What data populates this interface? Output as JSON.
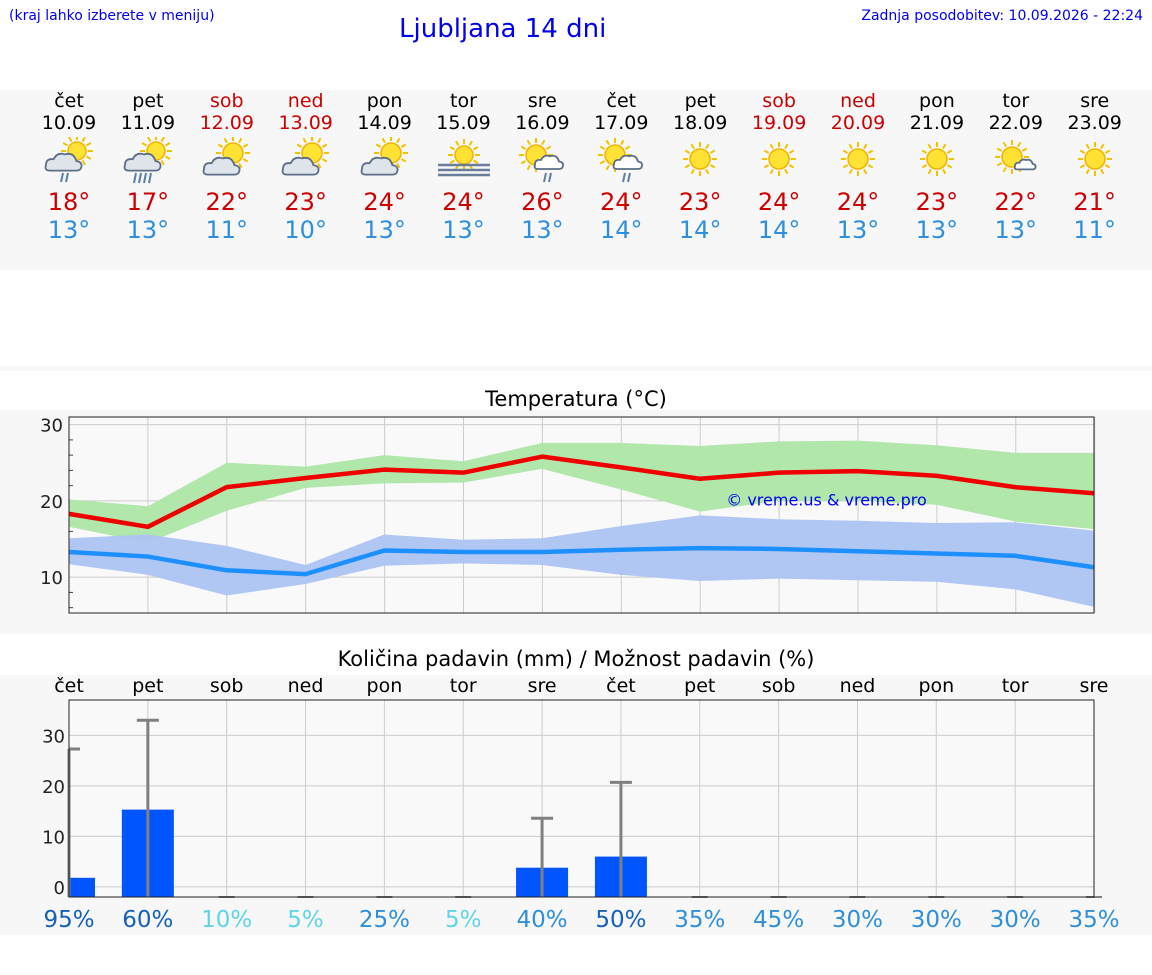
{
  "header": {
    "hint": "(kraj lahko izberete v meniju)",
    "title": "Ljubljana 14 dni",
    "updated": "Zadnja posodobitev: 10.09.2026 - 22:24"
  },
  "colors": {
    "link": "#0000ee",
    "weekend": "#cc0000",
    "max_line": "#ee0000",
    "max_band": "#aee6a8",
    "min_line": "#1e8fff",
    "min_band": "#adc4f2",
    "precip_bar": "#0055ff",
    "error_bar": "#808080"
  },
  "days": [
    {
      "name": "čet",
      "date": "10.09",
      "weekend": false,
      "icon": "cloud-rain-sun-icon",
      "max": "18°",
      "min": "13°"
    },
    {
      "name": "pet",
      "date": "11.09",
      "weekend": false,
      "icon": "cloud-heavy-rain-sun-icon",
      "max": "17°",
      "min": "13°"
    },
    {
      "name": "sob",
      "date": "12.09",
      "weekend": true,
      "icon": "partly-cloudy-icon",
      "max": "22°",
      "min": "11°"
    },
    {
      "name": "ned",
      "date": "13.09",
      "weekend": true,
      "icon": "partly-cloudy-icon",
      "max": "23°",
      "min": "10°"
    },
    {
      "name": "pon",
      "date": "14.09",
      "weekend": false,
      "icon": "partly-cloudy-icon",
      "max": "24°",
      "min": "13°"
    },
    {
      "name": "tor",
      "date": "15.09",
      "weekend": false,
      "icon": "sun-fog-icon",
      "max": "24°",
      "min": "13°"
    },
    {
      "name": "sre",
      "date": "16.09",
      "weekend": false,
      "icon": "sun-shower-icon",
      "max": "26°",
      "min": "13°"
    },
    {
      "name": "čet",
      "date": "17.09",
      "weekend": false,
      "icon": "sun-shower-icon",
      "max": "24°",
      "min": "14°"
    },
    {
      "name": "pet",
      "date": "18.09",
      "weekend": false,
      "icon": "sun-icon",
      "max": "23°",
      "min": "14°"
    },
    {
      "name": "sob",
      "date": "19.09",
      "weekend": true,
      "icon": "sun-icon",
      "max": "24°",
      "min": "14°"
    },
    {
      "name": "ned",
      "date": "20.09",
      "weekend": true,
      "icon": "sun-icon",
      "max": "24°",
      "min": "13°"
    },
    {
      "name": "pon",
      "date": "21.09",
      "weekend": false,
      "icon": "sun-icon",
      "max": "23°",
      "min": "13°"
    },
    {
      "name": "tor",
      "date": "22.09",
      "weekend": false,
      "icon": "sun-small-cloud-icon",
      "max": "22°",
      "min": "13°"
    },
    {
      "name": "sre",
      "date": "23.09",
      "weekend": false,
      "icon": "sun-icon",
      "max": "21°",
      "min": "11°"
    }
  ],
  "chart_data": [
    {
      "type": "line",
      "title": "Temperatura (°C)",
      "watermark": "© vreme.us & vreme.pro",
      "x": [
        "10.09",
        "11.09",
        "12.09",
        "13.09",
        "14.09",
        "15.09",
        "16.09",
        "17.09",
        "18.09",
        "19.09",
        "20.09",
        "21.09",
        "22.09",
        "23.09"
      ],
      "ylim": [
        5.3,
        31
      ],
      "yticks": [
        10,
        20,
        30
      ],
      "grid": true,
      "series": [
        {
          "values": [
            18.3,
            16.6,
            21.8,
            23.0,
            24.1,
            23.7,
            25.8,
            24.4,
            22.9,
            23.7,
            23.9,
            23.3,
            21.8,
            21.0
          ],
          "band_high": [
            20.2,
            19.3,
            25.0,
            24.5,
            26.0,
            25.2,
            27.6,
            27.6,
            27.2,
            27.8,
            27.9,
            27.3,
            26.3,
            26.3
          ],
          "band_low": [
            16.6,
            14.5,
            18.7,
            21.7,
            22.3,
            22.4,
            24.2,
            21.5,
            18.6,
            20.0,
            20.0,
            19.5,
            17.3,
            16.3
          ]
        },
        {
          "values": [
            13.3,
            12.7,
            10.9,
            10.4,
            13.5,
            13.3,
            13.3,
            13.6,
            13.8,
            13.7,
            13.4,
            13.1,
            12.8,
            11.3
          ],
          "band_high": [
            15.1,
            15.6,
            14.1,
            11.6,
            15.6,
            14.9,
            15.1,
            16.7,
            18.1,
            17.6,
            17.4,
            17.1,
            17.2,
            16.1
          ],
          "band_low": [
            11.7,
            10.3,
            7.6,
            9.1,
            11.5,
            11.8,
            11.6,
            10.3,
            9.5,
            9.8,
            9.6,
            9.4,
            8.4,
            6.1
          ]
        }
      ]
    },
    {
      "type": "bar",
      "title": "Količina padavin (mm) / Možnost padavin (%)",
      "categories": [
        "čet",
        "pet",
        "sob",
        "ned",
        "pon",
        "tor",
        "sre",
        "čet",
        "pet",
        "sob",
        "ned",
        "pon",
        "tor",
        "sre"
      ],
      "ylim": [
        -2,
        37
      ],
      "yticks": [
        0,
        10,
        20,
        30
      ],
      "grid": true,
      "values": [
        1.8,
        15.3,
        0,
        0,
        0,
        0,
        3.8,
        6.0,
        0,
        0,
        0,
        0,
        0,
        0
      ],
      "error_high": [
        27.3,
        33.0,
        0,
        0,
        0,
        0,
        13.6,
        20.7,
        0,
        0,
        0,
        0,
        0,
        0
      ],
      "probability": [
        "95%",
        "60%",
        "10%",
        "5%",
        "25%",
        "5%",
        "40%",
        "50%",
        "35%",
        "45%",
        "30%",
        "30%",
        "30%",
        "35%"
      ],
      "probability_colors": [
        "#1660b8",
        "#1660b8",
        "#5fd5e6",
        "#5fd5e6",
        "#2f8fd8",
        "#5fd5e6",
        "#2f8fd8",
        "#1660b8",
        "#2f8fd8",
        "#2f8fd8",
        "#2f8fd8",
        "#2f8fd8",
        "#2f8fd8",
        "#2f8fd8"
      ]
    }
  ]
}
